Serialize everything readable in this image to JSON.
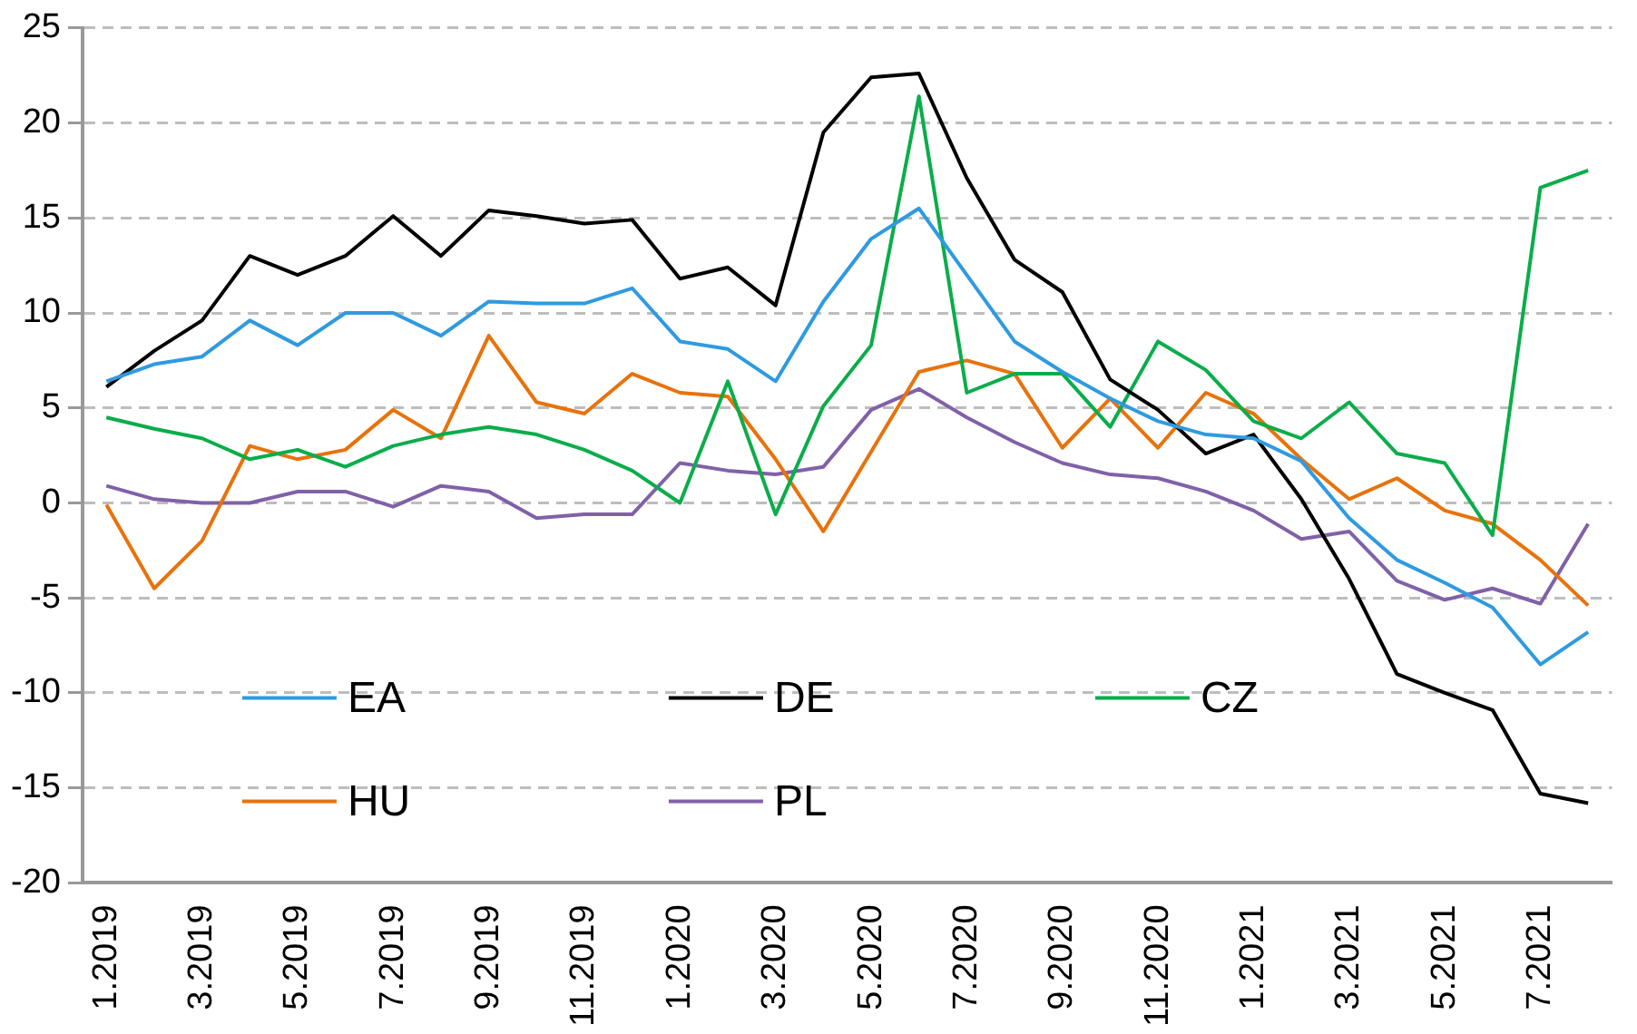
{
  "chart_data": {
    "type": "line",
    "categories": [
      "1.2019",
      null,
      "3.2019",
      null,
      "5.2019",
      null,
      "7.2019",
      null,
      "9.2019",
      null,
      "11.2019",
      null,
      "1.2020",
      null,
      "3.2020",
      null,
      "5.2020",
      null,
      "7.2020",
      null,
      "9.2020",
      null,
      "11.2020",
      null,
      "1.2021",
      null,
      "3.2021",
      null,
      "5.2021",
      null,
      "7.2021",
      null
    ],
    "series": [
      {
        "name": "EA",
        "color": "#2f9ae0",
        "values": [
          6.4,
          7.3,
          7.7,
          9.6,
          8.3,
          10.0,
          10.0,
          8.8,
          10.6,
          10.5,
          10.5,
          11.3,
          8.5,
          8.1,
          6.4,
          10.6,
          13.9,
          15.5,
          12.0,
          8.5,
          6.9,
          5.5,
          4.3,
          3.6,
          3.4,
          2.2,
          -0.8,
          -3.0,
          -4.2,
          -5.5,
          -8.5,
          -6.8
        ]
      },
      {
        "name": "DE",
        "color": "#000000",
        "values": [
          6.1,
          8.0,
          9.6,
          13.0,
          12.0,
          13.0,
          15.1,
          13.0,
          15.4,
          15.1,
          14.7,
          14.9,
          11.8,
          12.4,
          10.4,
          19.5,
          22.4,
          22.6,
          17.1,
          12.8,
          11.1,
          6.5,
          4.9,
          2.6,
          3.6,
          0.2,
          -4.0,
          -9.0,
          -10.0,
          -10.9,
          -15.3,
          -15.8
        ]
      },
      {
        "name": "CZ",
        "color": "#0aad4a",
        "values": [
          4.5,
          3.9,
          3.4,
          2.3,
          2.8,
          1.9,
          3.0,
          3.6,
          4.0,
          3.6,
          2.8,
          1.7,
          0.0,
          6.4,
          -0.6,
          5.1,
          8.3,
          21.4,
          5.8,
          6.8,
          6.8,
          4.0,
          8.5,
          7.0,
          4.3,
          3.4,
          5.3,
          2.6,
          2.1,
          -1.7,
          16.6,
          17.5
        ]
      },
      {
        "name": "HU",
        "color": "#e8720c",
        "values": [
          -0.1,
          -4.5,
          -2.0,
          3.0,
          2.3,
          2.8,
          4.9,
          3.4,
          8.8,
          5.3,
          4.7,
          6.8,
          5.8,
          5.6,
          2.3,
          -1.5,
          2.7,
          6.9,
          7.5,
          6.8,
          2.9,
          5.5,
          2.9,
          5.8,
          4.7,
          2.3,
          0.2,
          1.3,
          -0.4,
          -1.1,
          -3.0,
          -5.4
        ]
      },
      {
        "name": "PL",
        "color": "#8061a8",
        "values": [
          0.9,
          0.2,
          0.0,
          0.0,
          0.6,
          0.6,
          -0.2,
          0.9,
          0.6,
          -0.8,
          -0.6,
          -0.6,
          2.1,
          1.7,
          1.5,
          1.9,
          4.9,
          6.0,
          4.5,
          3.2,
          2.1,
          1.5,
          1.3,
          0.6,
          -0.4,
          -1.9,
          -1.5,
          -4.1,
          -5.1,
          -4.5,
          -5.3,
          -1.1
        ]
      }
    ],
    "ylim": [
      -20,
      25
    ],
    "yticks": [
      -20,
      -15,
      -10,
      -5,
      0,
      5,
      10,
      15,
      20,
      25
    ],
    "grid": "y",
    "legend": "bottom left",
    "marker": "none",
    "line_style": "solid"
  }
}
